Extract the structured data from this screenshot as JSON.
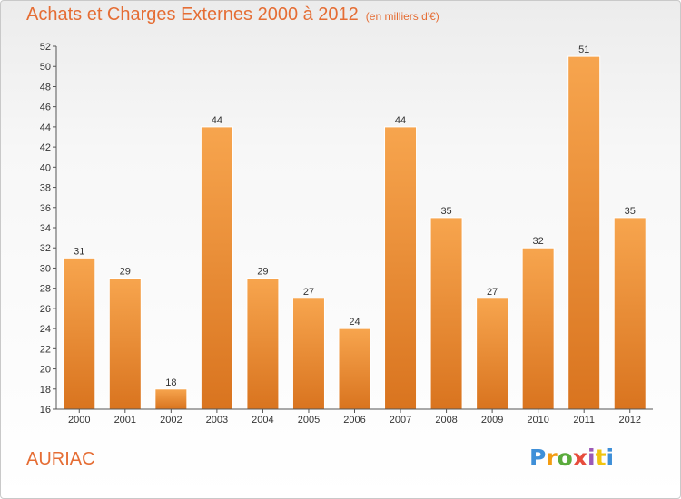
{
  "title": "Achats et Charges Externes 2000 à 2012",
  "subtitle": "(en milliers d'€)",
  "location": "AURIAC",
  "logo": {
    "text": "Proxiti",
    "letter_colors": [
      "#3e8fd8",
      "#f39c12",
      "#5aab3c",
      "#e74c3c",
      "#9b59b6",
      "#f1c40f",
      "#3e8fd8"
    ]
  },
  "colors": {
    "bar_light": "#f7a54e",
    "bar_dark": "#d9741f",
    "accent": "#e56d34"
  },
  "chart_data": {
    "type": "bar",
    "title": "Achats et Charges Externes 2000 à 2012",
    "subtitle": "(en milliers d'€)",
    "categories": [
      "2000",
      "2001",
      "2002",
      "2003",
      "2004",
      "2005",
      "2006",
      "2007",
      "2008",
      "2009",
      "2010",
      "2011",
      "2012"
    ],
    "values": [
      31,
      29,
      18,
      44,
      29,
      27,
      24,
      44,
      35,
      27,
      32,
      51,
      35
    ],
    "ylim": [
      16,
      52
    ],
    "yticks": [
      16,
      18,
      20,
      22,
      24,
      26,
      28,
      30,
      32,
      34,
      36,
      38,
      40,
      42,
      44,
      46,
      48,
      50,
      52
    ],
    "grid": false,
    "legend": "none",
    "data_labels": true
  }
}
